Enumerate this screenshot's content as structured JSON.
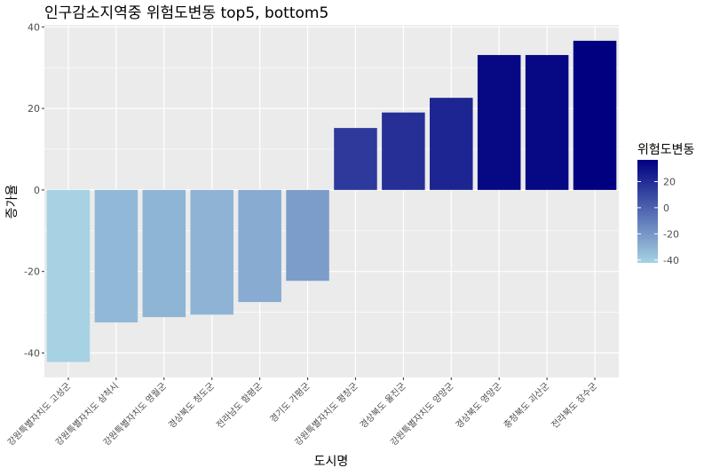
{
  "chart_data": {
    "type": "bar",
    "title": "인구감소지역중 위험도변동 top5, bottom5",
    "xlabel": "도시명",
    "ylabel": "증가율",
    "categories": [
      "강원특별자치도 고성군",
      "강원특별자치도 삼척시",
      "강원특별자치도 영월군",
      "경상북도 청도군",
      "전라남도 함평군",
      "경기도 가평군",
      "강원특별자치도 평창군",
      "경상북도 울진군",
      "강원특별자치도 양양군",
      "경상북도 영양군",
      "충청북도 괴산군",
      "전라북도 장수군"
    ],
    "values": [
      -42.2,
      -32.5,
      -31.2,
      -30.6,
      -27.5,
      -22.3,
      15.2,
      19.0,
      22.6,
      33.1,
      33.1,
      36.6
    ],
    "ylim": [
      -46,
      40.5
    ],
    "yticks": [
      -40,
      -20,
      0,
      20,
      40
    ],
    "legend": {
      "title": "위험도변동",
      "position": "right",
      "ticks": [
        -40,
        -20,
        0,
        20
      ],
      "range": [
        -42.2,
        36.6
      ],
      "color_low": "#A6D2E3",
      "color_high": "#000080"
    },
    "grid": true,
    "panel_color": "#EBEBEB"
  }
}
